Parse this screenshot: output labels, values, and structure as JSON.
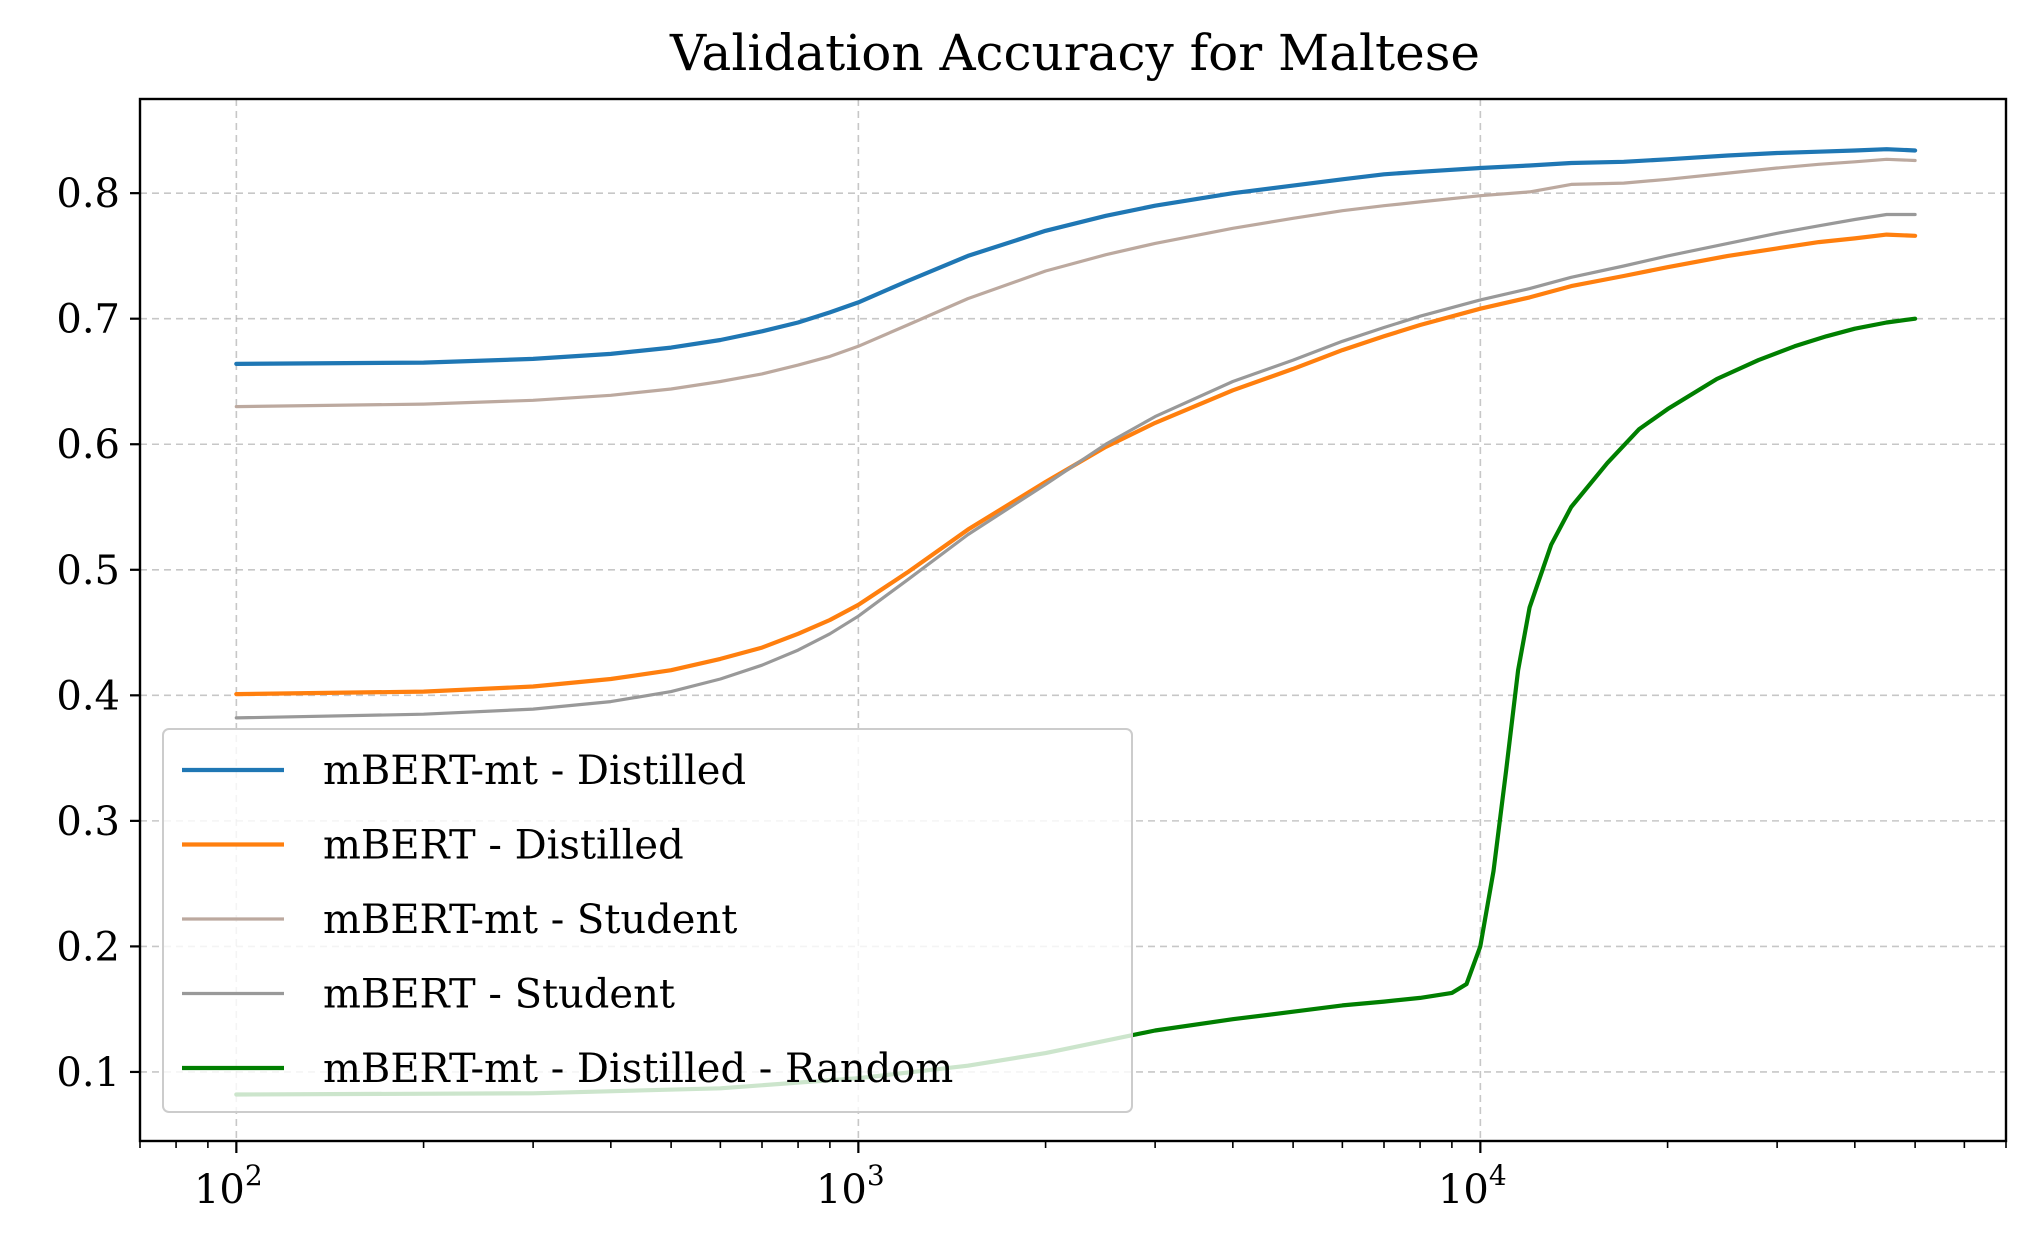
{
  "chart_data": {
    "type": "line",
    "title": "Validation Accuracy for Maltese",
    "xlabel": "",
    "ylabel": "",
    "xscale": "log",
    "xlim": [
      70,
      70000
    ],
    "ylim": [
      0.045,
      0.875
    ],
    "grid": true,
    "legend_position": "lower-left",
    "x_ticks": [
      {
        "value": 100,
        "base": "10",
        "exp": "2"
      },
      {
        "value": 1000,
        "base": "10",
        "exp": "3"
      },
      {
        "value": 10000,
        "base": "10",
        "exp": "4"
      }
    ],
    "y_ticks": [
      {
        "value": 0.1,
        "label": "0.1"
      },
      {
        "value": 0.2,
        "label": "0.2"
      },
      {
        "value": 0.3,
        "label": "0.3"
      },
      {
        "value": 0.4,
        "label": "0.4"
      },
      {
        "value": 0.5,
        "label": "0.5"
      },
      {
        "value": 0.6,
        "label": "0.6"
      },
      {
        "value": 0.7,
        "label": "0.7"
      },
      {
        "value": 0.8,
        "label": "0.8"
      }
    ],
    "series": [
      {
        "name": "mBERT-mt - Distilled",
        "color": "#1f77b4",
        "width": 4.2,
        "x": [
          100,
          200,
          300,
          400,
          500,
          600,
          700,
          800,
          900,
          1000,
          1200,
          1500,
          2000,
          2500,
          3000,
          4000,
          5000,
          6000,
          7000,
          8000,
          10000,
          12000,
          14000,
          17000,
          20000,
          25000,
          30000,
          35000,
          40000,
          45000,
          50000
        ],
        "y": [
          0.664,
          0.665,
          0.668,
          0.672,
          0.677,
          0.683,
          0.69,
          0.697,
          0.705,
          0.713,
          0.73,
          0.75,
          0.77,
          0.782,
          0.79,
          0.8,
          0.806,
          0.811,
          0.815,
          0.817,
          0.82,
          0.822,
          0.824,
          0.825,
          0.827,
          0.83,
          0.832,
          0.833,
          0.834,
          0.835,
          0.834
        ]
      },
      {
        "name": "mBERT - Distilled",
        "color": "#ff7f0e",
        "width": 4.2,
        "x": [
          100,
          200,
          300,
          400,
          500,
          600,
          700,
          800,
          900,
          1000,
          1200,
          1500,
          2000,
          2500,
          3000,
          4000,
          5000,
          6000,
          7000,
          8000,
          10000,
          12000,
          14000,
          17000,
          20000,
          25000,
          30000,
          35000,
          40000,
          45000,
          50000
        ],
        "y": [
          0.401,
          0.403,
          0.407,
          0.413,
          0.42,
          0.429,
          0.438,
          0.449,
          0.46,
          0.472,
          0.498,
          0.532,
          0.57,
          0.598,
          0.617,
          0.643,
          0.66,
          0.675,
          0.686,
          0.695,
          0.708,
          0.717,
          0.726,
          0.734,
          0.741,
          0.75,
          0.756,
          0.761,
          0.764,
          0.767,
          0.766
        ]
      },
      {
        "name": "mBERT-mt - Student",
        "color": "#bca99f",
        "width": 3.2,
        "x": [
          100,
          200,
          300,
          400,
          500,
          600,
          700,
          800,
          900,
          1000,
          1200,
          1500,
          2000,
          2500,
          3000,
          4000,
          5000,
          6000,
          7000,
          8000,
          10000,
          12000,
          14000,
          17000,
          20000,
          25000,
          30000,
          35000,
          40000,
          45000,
          50000
        ],
        "y": [
          0.63,
          0.632,
          0.635,
          0.639,
          0.644,
          0.65,
          0.656,
          0.663,
          0.67,
          0.678,
          0.695,
          0.716,
          0.738,
          0.751,
          0.76,
          0.772,
          0.78,
          0.786,
          0.79,
          0.793,
          0.798,
          0.801,
          0.807,
          0.808,
          0.811,
          0.816,
          0.82,
          0.823,
          0.825,
          0.827,
          0.826
        ]
      },
      {
        "name": "mBERT - Student",
        "color": "#999999",
        "width": 3.2,
        "x": [
          100,
          200,
          300,
          400,
          500,
          600,
          700,
          800,
          900,
          1000,
          1200,
          1500,
          2000,
          2500,
          3000,
          4000,
          5000,
          6000,
          7000,
          8000,
          10000,
          12000,
          14000,
          17000,
          20000,
          25000,
          30000,
          35000,
          40000,
          45000,
          50000
        ],
        "y": [
          0.382,
          0.385,
          0.389,
          0.395,
          0.403,
          0.413,
          0.424,
          0.436,
          0.449,
          0.463,
          0.492,
          0.528,
          0.568,
          0.6,
          0.622,
          0.65,
          0.667,
          0.682,
          0.693,
          0.702,
          0.715,
          0.724,
          0.733,
          0.742,
          0.75,
          0.76,
          0.768,
          0.774,
          0.779,
          0.783,
          0.783
        ]
      },
      {
        "name": "mBERT-mt - Distilled - Random",
        "color": "#007f00",
        "width": 4.2,
        "x": [
          100,
          300,
          600,
          1000,
          1500,
          2000,
          3000,
          4000,
          5000,
          6000,
          7000,
          8000,
          9000,
          9500,
          10000,
          10500,
          11000,
          11500,
          12000,
          13000,
          14000,
          16000,
          18000,
          20000,
          24000,
          28000,
          32000,
          36000,
          40000,
          45000,
          50000
        ],
        "y": [
          0.082,
          0.083,
          0.087,
          0.095,
          0.105,
          0.115,
          0.133,
          0.142,
          0.148,
          0.153,
          0.156,
          0.159,
          0.163,
          0.17,
          0.2,
          0.26,
          0.34,
          0.42,
          0.47,
          0.52,
          0.55,
          0.585,
          0.612,
          0.628,
          0.652,
          0.667,
          0.678,
          0.686,
          0.692,
          0.697,
          0.7
        ]
      }
    ]
  }
}
